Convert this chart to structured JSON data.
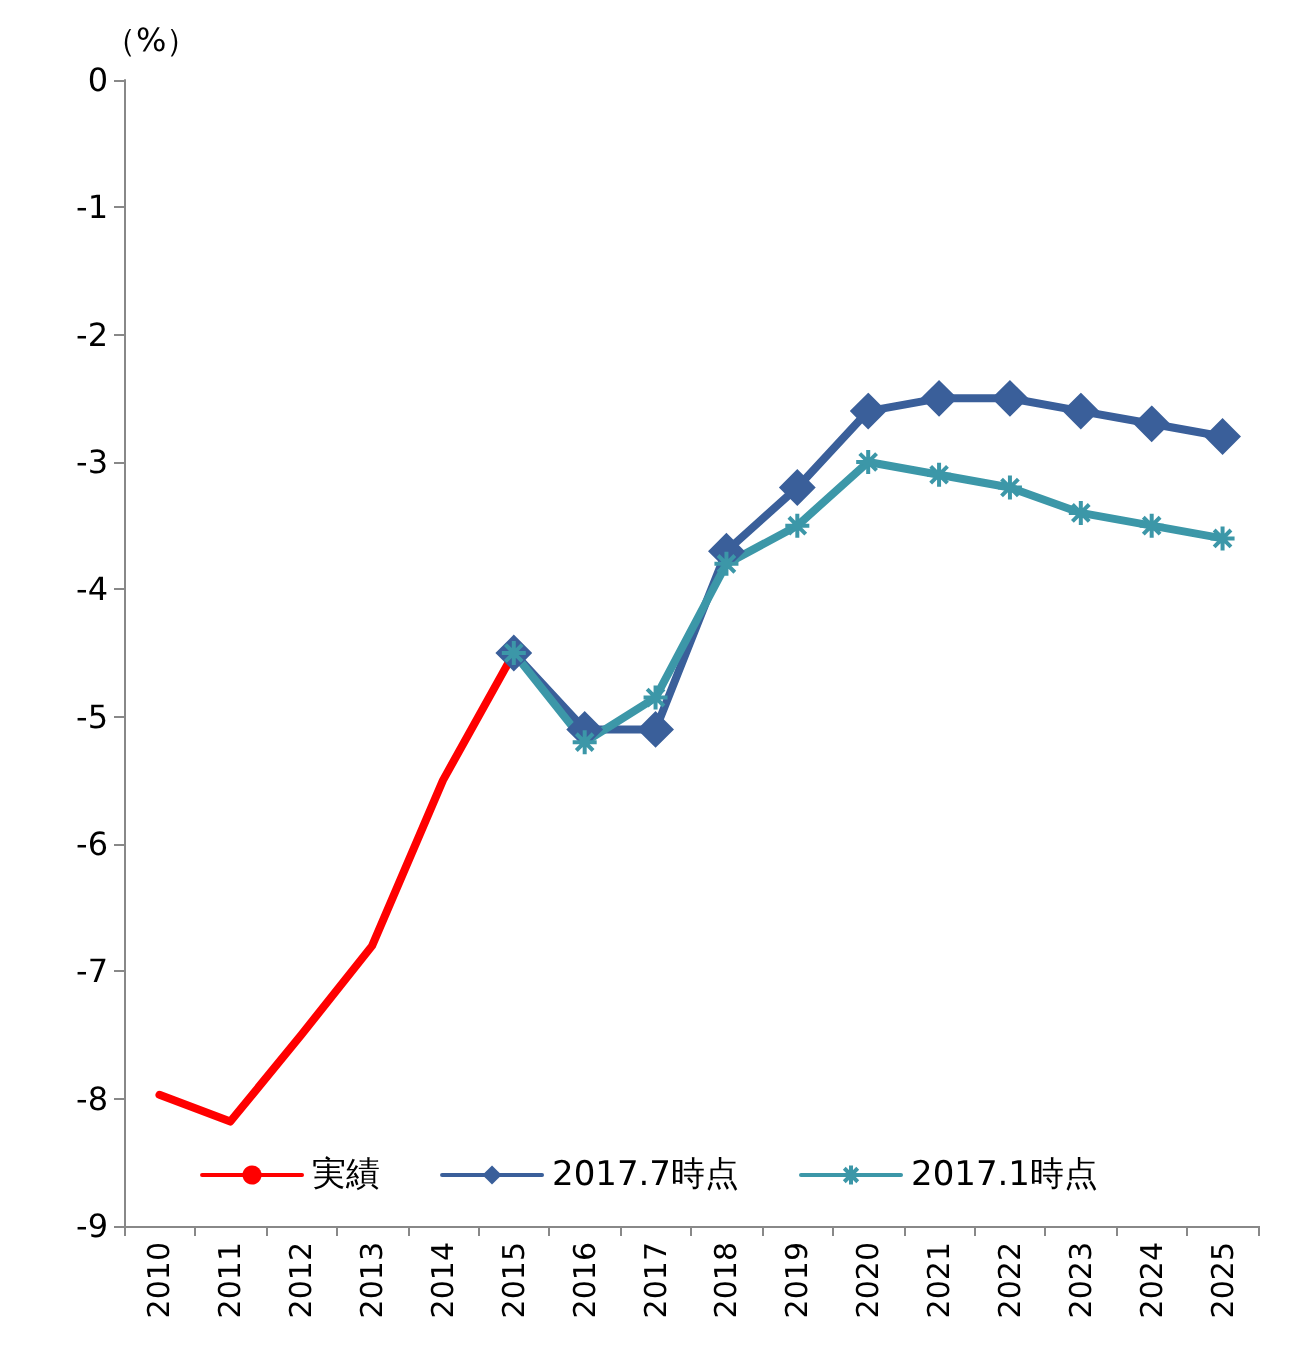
{
  "chart_data": {
    "type": "line",
    "ylabel": "（%）",
    "categories": [
      "2010",
      "2011",
      "2012",
      "2013",
      "2014",
      "2015",
      "2016",
      "2017",
      "2018",
      "2019",
      "2020",
      "2021",
      "2022",
      "2023",
      "2024",
      "2025"
    ],
    "series": [
      {
        "name": "実績",
        "color": "#ff0000",
        "marker": "none",
        "values": [
          -7.97,
          -8.18,
          -7.5,
          -6.8,
          -5.5,
          -4.5,
          null,
          null,
          null,
          null,
          null,
          null,
          null,
          null,
          null,
          null
        ]
      },
      {
        "name": "2017.7時点",
        "color": "#3a5f9a",
        "marker": "diamond",
        "values": [
          null,
          null,
          null,
          null,
          null,
          -4.5,
          -5.1,
          -5.1,
          -3.7,
          -3.2,
          -2.6,
          -2.5,
          -2.5,
          -2.6,
          -2.7,
          -2.8
        ]
      },
      {
        "name": "2017.1時点",
        "color": "#3c97a8",
        "marker": "cross",
        "values": [
          null,
          null,
          null,
          null,
          null,
          -4.5,
          -5.2,
          -4.85,
          -3.8,
          -3.5,
          -3.0,
          -3.1,
          -3.2,
          -3.4,
          -3.5,
          -3.6
        ]
      }
    ],
    "ylim": [
      -9,
      0
    ],
    "yticks": [
      0,
      -1,
      -2,
      -3,
      -4,
      -5,
      -6,
      -7,
      -8,
      -9
    ],
    "grid": false,
    "legend": "bottom",
    "line_style": "solid"
  }
}
